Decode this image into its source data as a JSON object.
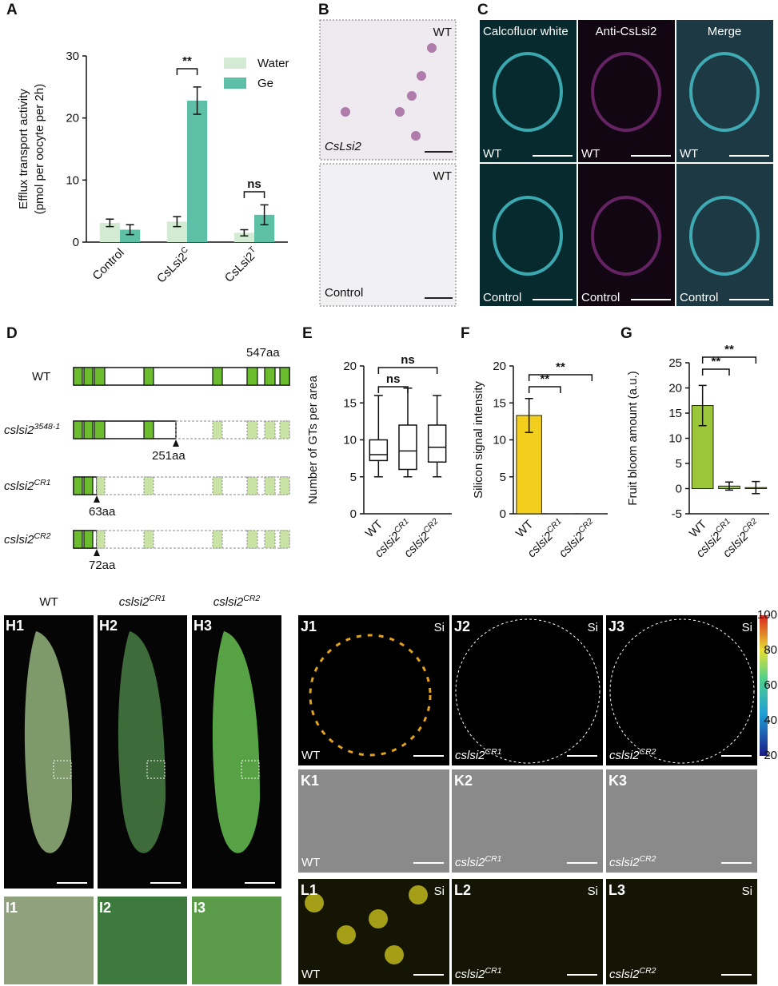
{
  "panel_letters": [
    "A",
    "B",
    "C",
    "D",
    "E",
    "F",
    "G"
  ],
  "chart_data": [
    {
      "type": "bar",
      "categories": [
        "Control",
        "CsLsi2",
        "CsLsi2"
      ],
      "category_superscripts": [
        null,
        "C",
        "T"
      ],
      "ylabel": [
        "Efflux transport activity",
        "(pmol per oocyte per 2h)"
      ],
      "series": [
        {
          "name": "Water",
          "color": "#d3ebd3",
          "values": [
            3.1,
            3.3,
            1.5
          ],
          "errors": [
            0.6,
            0.8,
            0.5
          ]
        },
        {
          "name": "Ge",
          "color": "#5dbfa6",
          "values": [
            2.0,
            22.8,
            4.4
          ],
          "errors": [
            0.8,
            2.2,
            1.6
          ]
        }
      ],
      "ylim": [
        0,
        30
      ],
      "yticks": [
        0,
        10,
        20,
        30
      ],
      "annotations": [
        "**",
        "ns"
      ]
    },
    {
      "type": "box",
      "categories": [
        "WT",
        "cslsi2",
        "cslsi2"
      ],
      "category_superscripts": [
        null,
        "CR1",
        "CR2"
      ],
      "ylabel": "Number of GTs per area",
      "boxes": [
        {
          "min": 5,
          "q1": 7.2,
          "median": 8,
          "q3": 10,
          "max": 16
        },
        {
          "min": 5,
          "q1": 6,
          "median": 8.5,
          "q3": 12,
          "max": 17
        },
        {
          "min": 5,
          "q1": 7,
          "median": 9,
          "q3": 12,
          "max": 16
        }
      ],
      "ylim": [
        0,
        20
      ],
      "yticks": [
        0,
        5,
        10,
        15,
        20
      ],
      "annotations": [
        "ns",
        "ns"
      ]
    },
    {
      "type": "bar",
      "categories": [
        "WT",
        "cslsi2",
        "cslsi2"
      ],
      "category_superscripts": [
        null,
        "CR1",
        "CR2"
      ],
      "ylabel": "Silicon signal intensity",
      "series": [
        {
          "color": "#f2cf1d",
          "values": [
            13.3,
            0,
            0
          ],
          "errors": [
            2.3,
            null,
            null
          ]
        }
      ],
      "ylim": [
        0,
        20
      ],
      "yticks": [
        0,
        5,
        10,
        15,
        20
      ],
      "annotations": [
        "**",
        "**"
      ]
    },
    {
      "type": "bar",
      "categories": [
        "WT",
        "cslsi2",
        "cslsi2"
      ],
      "category_superscripts": [
        null,
        "CR1",
        "CR2"
      ],
      "ylabel": "Fruit bloom amount (a.u.)",
      "series": [
        {
          "color": "#9cc73a",
          "values": [
            16.5,
            0.5,
            0.2
          ],
          "errors": [
            4.0,
            0.8,
            1.2
          ]
        }
      ],
      "ylim": [
        -5,
        25
      ],
      "yticks": [
        -5,
        0,
        5,
        10,
        15,
        20,
        25
      ],
      "annotations": [
        "**",
        "**"
      ]
    }
  ],
  "gene_diagram": {
    "rows": [
      {
        "name": {
          "text": "WT"
        },
        "length": "547aa"
      },
      {
        "name": {
          "text": "cslsi2",
          "sup": "3548-1"
        },
        "length": "251aa"
      },
      {
        "name": {
          "text": "cslsi2",
          "sup": "CR1"
        },
        "length": "63aa"
      },
      {
        "name": {
          "text": "cslsi2",
          "sup": "CR2"
        },
        "length": "72aa"
      }
    ]
  },
  "images": {
    "B": [
      {
        "top_right": "WT",
        "bottom_left": "CsLsi2"
      },
      {
        "top_right": "WT",
        "bottom_left": "Control"
      }
    ],
    "C": {
      "headers": [
        "Calcofluor white",
        "Anti-CsLsi2",
        "Merge"
      ],
      "rows": [
        [
          "WT",
          "WT",
          "WT"
        ],
        [
          "Control",
          "Control",
          "Control"
        ]
      ]
    },
    "H": {
      "headers": [
        {
          "text": "WT"
        },
        {
          "text": "cslsi2",
          "sup": "CR1"
        },
        {
          "text": "cslsi2",
          "sup": "CR2"
        }
      ],
      "ids": [
        "H1",
        "H2",
        "H3"
      ],
      "detail_ids": [
        "I1",
        "I2",
        "I3"
      ]
    },
    "J": {
      "ids": [
        "J1",
        "J2",
        "J3"
      ],
      "channel": "Si",
      "genotypes": [
        {
          "text": "WT"
        },
        {
          "text": "cslsi2",
          "sup": "CR1"
        },
        {
          "text": "cslsi2",
          "sup": "CR2"
        }
      ],
      "colorbar_ticks": [
        100,
        80,
        60,
        40,
        20
      ]
    },
    "K": {
      "ids": [
        "K1",
        "K2",
        "K3"
      ],
      "genotypes": [
        {
          "text": "WT"
        },
        {
          "text": "cslsi2",
          "sup": "CR1"
        },
        {
          "text": "cslsi2",
          "sup": "CR2"
        }
      ]
    },
    "L": {
      "ids": [
        "L1",
        "L2",
        "L3"
      ],
      "channel": "Si",
      "genotypes": [
        {
          "text": "WT"
        },
        {
          "text": "cslsi2",
          "sup": "CR1"
        },
        {
          "text": "cslsi2",
          "sup": "CR2"
        }
      ]
    }
  }
}
